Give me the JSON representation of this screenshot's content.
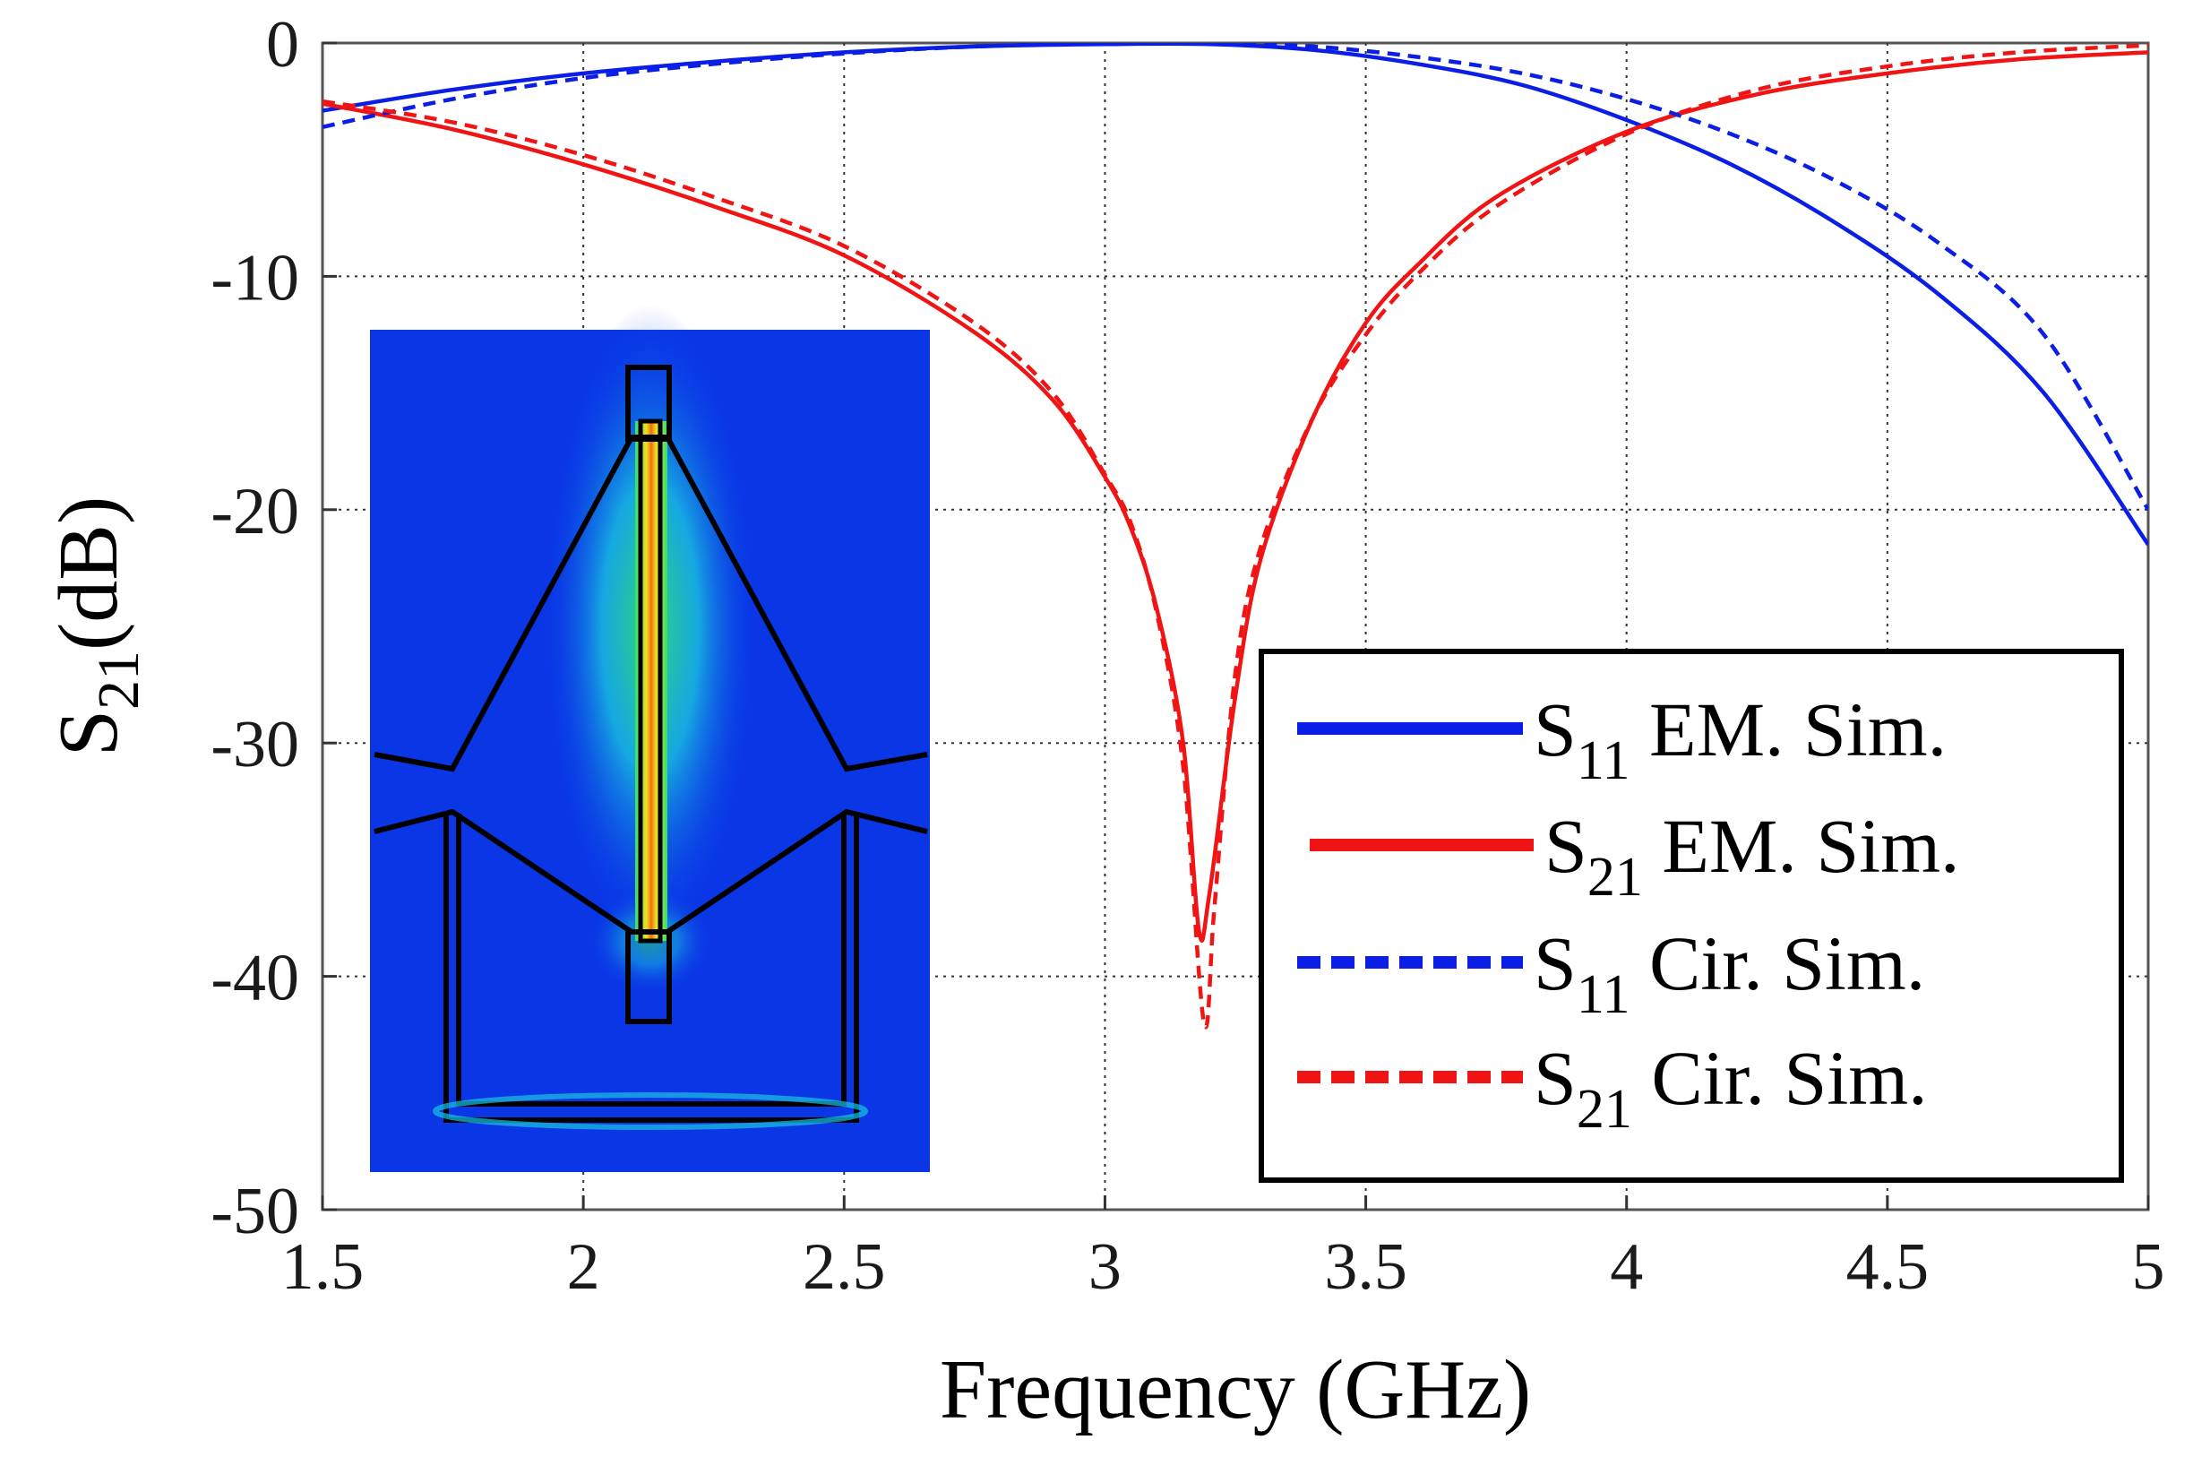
{
  "chart_data": {
    "type": "line",
    "title": "",
    "xlabel": "Frequency (GHz)",
    "ylabel": {
      "main": "S",
      "sub": "21",
      "rest": "(dB)"
    },
    "xlim": [
      1.5,
      5
    ],
    "ylim": [
      -50,
      0
    ],
    "xticks": [
      1.5,
      2,
      2.5,
      3,
      3.5,
      4,
      4.5,
      5
    ],
    "xtick_labels": [
      "1.5",
      "2",
      "2.5",
      "3",
      "3.5",
      "4",
      "4.5",
      "5"
    ],
    "yticks": [
      0,
      -10,
      -20,
      -30,
      -40,
      -50
    ],
    "ytick_labels": [
      "0",
      "-10",
      "-20",
      "-30",
      "-40",
      "-50"
    ],
    "grid": true,
    "legend_position": "bottom-right",
    "series": [
      {
        "name": "S11 EM. Sim.",
        "label_main": "S",
        "label_sub": "11",
        "label_rest": " EM. Sim.",
        "color": "#0a1ee6",
        "dash": "solid",
        "x": [
          1.5,
          1.75,
          2.0,
          2.25,
          2.5,
          2.75,
          3.0,
          3.2,
          3.4,
          3.6,
          3.8,
          4.0,
          4.2,
          4.4,
          4.6,
          4.8,
          5.0
        ],
        "y": [
          -2.9,
          -2.0,
          -1.3,
          -0.8,
          -0.4,
          -0.15,
          -0.05,
          -0.05,
          -0.3,
          -0.9,
          -1.8,
          -3.3,
          -5.2,
          -7.7,
          -10.8,
          -15.0,
          -21.5
        ]
      },
      {
        "name": "S21 EM. Sim.",
        "label_main": "S",
        "label_sub": "21",
        "label_rest": " EM. Sim.",
        "color": "#f01414",
        "dash": "solid",
        "x": [
          1.5,
          1.75,
          2.0,
          2.25,
          2.5,
          2.75,
          2.9,
          3.0,
          3.05,
          3.1,
          3.15,
          3.18,
          3.2,
          3.25,
          3.3,
          3.4,
          3.5,
          3.6,
          3.75,
          4.0,
          4.25,
          4.5,
          4.75,
          5.0
        ],
        "y": [
          -2.6,
          -3.7,
          -5.2,
          -7.0,
          -9.1,
          -12.4,
          -15.3,
          -18.6,
          -20.8,
          -24.3,
          -30.0,
          -38.0,
          -36.5,
          -28.0,
          -22.0,
          -16.0,
          -12.0,
          -9.5,
          -6.6,
          -3.8,
          -2.2,
          -1.3,
          -0.7,
          -0.4
        ]
      },
      {
        "name": "S11 Cir. Sim.",
        "label_main": "S",
        "label_sub": "11",
        "label_rest": " Cir. Sim.",
        "color": "#0a1ee6",
        "dash": "dashed",
        "x": [
          1.5,
          1.75,
          2.0,
          2.25,
          2.5,
          2.75,
          3.0,
          3.2,
          3.4,
          3.6,
          3.8,
          4.0,
          4.2,
          4.4,
          4.6,
          4.8,
          5.0
        ],
        "y": [
          -3.6,
          -2.4,
          -1.5,
          -0.9,
          -0.45,
          -0.15,
          -0.02,
          0.0,
          -0.15,
          -0.6,
          -1.3,
          -2.4,
          -3.9,
          -5.9,
          -8.6,
          -12.5,
          -20.0
        ]
      },
      {
        "name": "S21 Cir. Sim.",
        "label_main": "S",
        "label_sub": "21",
        "label_rest": " Cir. Sim.",
        "color": "#f01414",
        "dash": "dashed",
        "x": [
          1.5,
          1.75,
          2.0,
          2.25,
          2.5,
          2.75,
          2.9,
          3.0,
          3.05,
          3.1,
          3.15,
          3.19,
          3.21,
          3.25,
          3.3,
          3.4,
          3.5,
          3.6,
          3.75,
          4.0,
          4.25,
          4.5,
          4.75,
          5.0
        ],
        "y": [
          -2.5,
          -3.4,
          -4.8,
          -6.6,
          -8.7,
          -12.0,
          -15.0,
          -18.5,
          -20.6,
          -24.5,
          -31.0,
          -42.0,
          -37.0,
          -27.0,
          -21.5,
          -16.0,
          -12.5,
          -9.9,
          -7.0,
          -3.9,
          -2.0,
          -1.0,
          -0.4,
          -0.1
        ]
      }
    ],
    "inset": {
      "type": "field-distribution",
      "description_colors": [
        "#0a1ee6",
        "#19c4e0",
        "#2fe070",
        "#f0e020",
        "#f01414"
      ]
    }
  }
}
